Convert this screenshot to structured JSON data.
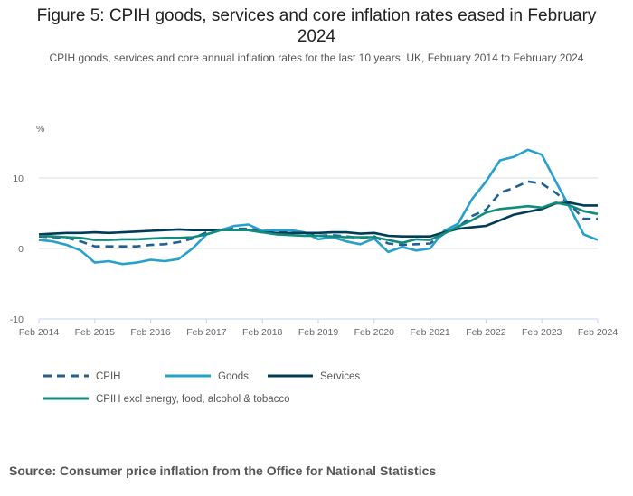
{
  "title": "Figure 5: CPIH goods, services and core inflation rates eased in February 2024",
  "subtitle": "CPIH goods, services and core annual inflation rates for the last 10 years, UK, February 2014 to February 2024",
  "source": "Source: Consumer price inflation from the Office for National Statistics",
  "chart_data": {
    "type": "line",
    "ylabel": "%",
    "ylim": [
      -10,
      16
    ],
    "yticks": [
      -10,
      0,
      10
    ],
    "xticks": [
      "Feb 2014",
      "Feb 2015",
      "Feb 2016",
      "Feb 2017",
      "Feb 2018",
      "Feb 2019",
      "Feb 2020",
      "Feb 2021",
      "Feb 2022",
      "Feb 2023",
      "Feb 2024"
    ],
    "grid": "horizontal",
    "legend_placement": "bottom",
    "x": [
      "2014-02",
      "2014-05",
      "2014-08",
      "2014-11",
      "2015-02",
      "2015-05",
      "2015-08",
      "2015-11",
      "2016-02",
      "2016-05",
      "2016-08",
      "2016-11",
      "2017-02",
      "2017-05",
      "2017-08",
      "2017-11",
      "2018-02",
      "2018-05",
      "2018-08",
      "2018-11",
      "2019-02",
      "2019-05",
      "2019-08",
      "2019-11",
      "2020-02",
      "2020-05",
      "2020-08",
      "2020-11",
      "2021-02",
      "2021-05",
      "2021-08",
      "2021-11",
      "2022-02",
      "2022-05",
      "2022-08",
      "2022-11",
      "2023-02",
      "2023-05",
      "2023-08",
      "2023-11",
      "2024-02"
    ],
    "series": [
      {
        "name": "CPIH",
        "color": "#206095",
        "dashed": true,
        "values": [
          1.7,
          1.6,
          1.5,
          1.0,
          0.3,
          0.3,
          0.3,
          0.3,
          0.5,
          0.6,
          0.9,
          1.4,
          2.3,
          2.7,
          2.8,
          2.8,
          2.5,
          2.3,
          2.4,
          2.2,
          1.8,
          1.9,
          1.7,
          1.5,
          1.7,
          0.7,
          0.5,
          0.6,
          0.7,
          2.1,
          3.0,
          4.6,
          5.5,
          7.9,
          8.6,
          9.5,
          9.2,
          7.9,
          6.3,
          4.2,
          4.2
        ]
      },
      {
        "name": "Goods",
        "color": "#27a0cc",
        "dashed": false,
        "values": [
          1.2,
          1.0,
          0.5,
          -0.3,
          -2.0,
          -1.8,
          -2.2,
          -2.0,
          -1.6,
          -1.8,
          -1.5,
          0.0,
          2.0,
          2.6,
          3.2,
          3.4,
          2.5,
          2.6,
          2.6,
          2.3,
          1.3,
          1.6,
          1.0,
          0.6,
          1.4,
          -0.5,
          0.2,
          -0.3,
          0.0,
          2.5,
          3.5,
          7.0,
          9.5,
          12.5,
          13.0,
          14.0,
          13.3,
          9.5,
          5.8,
          2.0,
          1.2
        ]
      },
      {
        "name": "Services",
        "color": "#003c57",
        "dashed": false,
        "values": [
          2.0,
          2.1,
          2.2,
          2.2,
          2.3,
          2.2,
          2.3,
          2.4,
          2.5,
          2.6,
          2.7,
          2.6,
          2.6,
          2.6,
          2.6,
          2.6,
          2.3,
          2.2,
          2.2,
          2.2,
          2.2,
          2.3,
          2.3,
          2.1,
          2.2,
          1.8,
          1.7,
          1.7,
          1.7,
          2.3,
          2.8,
          3.0,
          3.2,
          4.0,
          4.8,
          5.2,
          5.6,
          6.4,
          6.5,
          6.1,
          6.1
        ]
      },
      {
        "name": "CPIH excl energy, food, alcohol & tobacco",
        "color": "#118c7b",
        "dashed": false,
        "values": [
          1.8,
          1.7,
          1.6,
          1.5,
          1.2,
          1.2,
          1.3,
          1.3,
          1.4,
          1.5,
          1.5,
          1.6,
          2.0,
          2.6,
          2.6,
          2.6,
          2.3,
          2.0,
          1.9,
          1.8,
          1.8,
          1.7,
          1.6,
          1.6,
          1.6,
          1.2,
          0.8,
          1.3,
          1.2,
          2.1,
          3.1,
          4.0,
          5.1,
          5.6,
          5.8,
          6.0,
          5.8,
          6.5,
          6.1,
          5.3,
          4.9
        ]
      }
    ]
  }
}
